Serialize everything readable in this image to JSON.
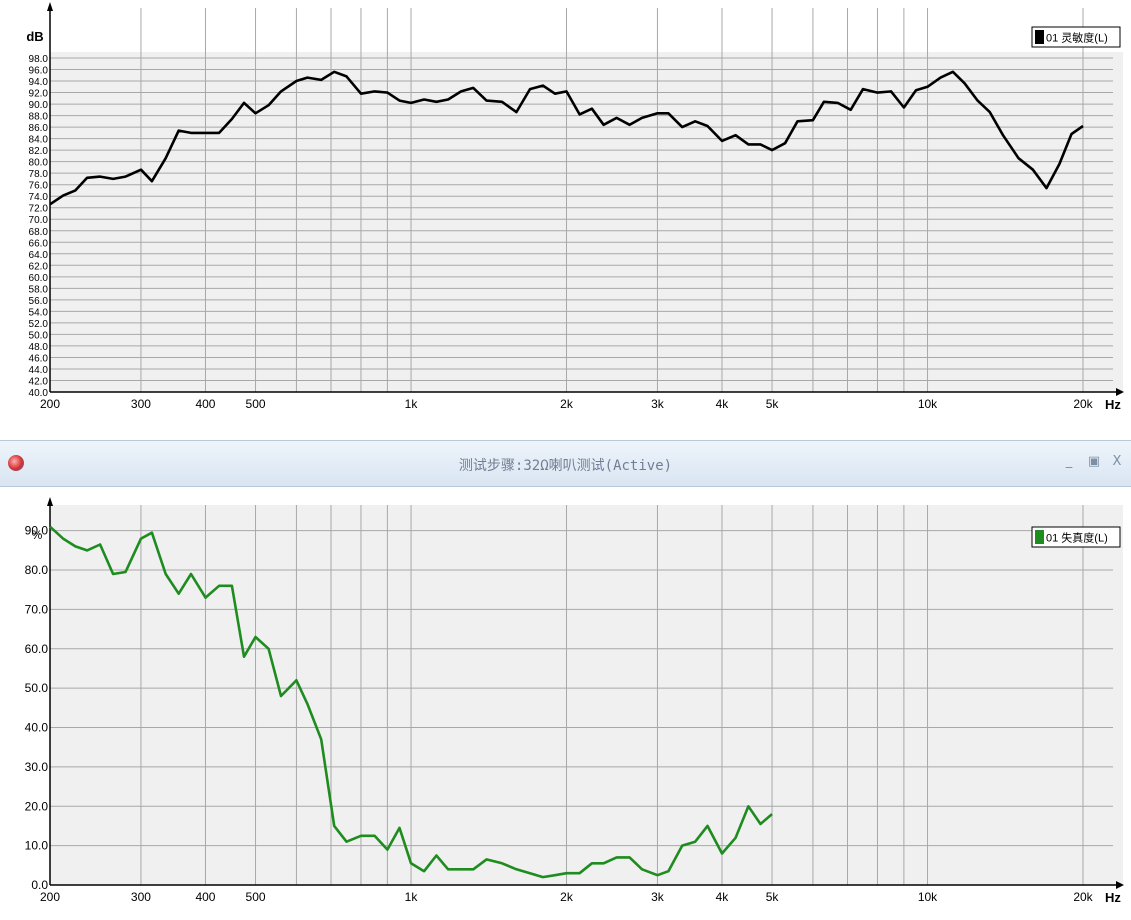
{
  "window": {
    "title": "测试步骤:32Ω喇叭测试(Active)",
    "minimize_label": "_",
    "maximize_label": "▣",
    "close_label": "X"
  },
  "chart_data": [
    {
      "type": "line",
      "ylabel": "dB",
      "xunit_label": "Hz",
      "xscale": "log",
      "xlim": [
        200,
        20000
      ],
      "ylim": [
        40,
        98
      ],
      "ytick_step": 2,
      "x_tick_labels": [
        "200",
        "300",
        "400",
        "500",
        "1k",
        "2k",
        "3k",
        "4k",
        "5k",
        "10k",
        "20k"
      ],
      "x_tick_values": [
        200,
        300,
        400,
        500,
        1000,
        2000,
        3000,
        4000,
        5000,
        10000,
        20000
      ],
      "grid": true,
      "legend": "top-right",
      "series": [
        {
          "name": "01 灵敏度(L)",
          "color": "#000000",
          "x": [
            200,
            212,
            224,
            236,
            250,
            265,
            280,
            300,
            315,
            335,
            355,
            375,
            400,
            425,
            450,
            475,
            500,
            530,
            560,
            600,
            630,
            670,
            710,
            750,
            800,
            850,
            900,
            950,
            1000,
            1060,
            1120,
            1180,
            1250,
            1320,
            1400,
            1500,
            1600,
            1700,
            1800,
            1900,
            2000,
            2120,
            2240,
            2360,
            2500,
            2650,
            2800,
            3000,
            3150,
            3350,
            3550,
            3750,
            4000,
            4250,
            4500,
            4750,
            5000,
            5300,
            5600,
            6000,
            6300,
            6700,
            7100,
            7500,
            8000,
            8500,
            9000,
            9500,
            10000,
            10600,
            11200,
            11800,
            12500,
            13200,
            14000,
            15000,
            16000,
            17000,
            18000,
            19000,
            20000
          ],
          "y": [
            72.6,
            74.1,
            75.0,
            77.2,
            77.4,
            77.0,
            77.4,
            78.6,
            76.6,
            80.6,
            85.4,
            85.0,
            85.0,
            85.0,
            87.4,
            90.2,
            88.4,
            89.8,
            92.2,
            94.0,
            94.6,
            94.2,
            95.6,
            94.8,
            91.8,
            92.2,
            92.0,
            90.6,
            90.2,
            90.8,
            90.4,
            90.8,
            92.2,
            92.8,
            90.6,
            90.4,
            88.6,
            92.6,
            93.2,
            91.8,
            92.2,
            88.2,
            89.2,
            86.4,
            87.6,
            86.4,
            87.6,
            88.4,
            88.4,
            86.0,
            87.0,
            86.2,
            83.6,
            84.6,
            83.0,
            83.0,
            82.0,
            83.2,
            87.0,
            87.2,
            90.4,
            90.2,
            89.0,
            92.6,
            92.0,
            92.2,
            89.4,
            92.4,
            93.0,
            94.6,
            95.6,
            93.6,
            90.6,
            88.6,
            84.6,
            80.6,
            78.6,
            75.4,
            79.6,
            84.8,
            86.2
          ]
        }
      ]
    },
    {
      "type": "line",
      "ylabel": "%",
      "xunit_label": "Hz",
      "xscale": "log",
      "xlim": [
        200,
        20000
      ],
      "ylim": [
        0,
        95
      ],
      "y_tick_labels": [
        "0.0",
        "10.0",
        "20.0",
        "30.0",
        "40.0",
        "50.0",
        "60.0",
        "70.0",
        "80.0",
        "90.0"
      ],
      "y_tick_values": [
        0,
        10,
        20,
        30,
        40,
        50,
        60,
        70,
        80,
        90
      ],
      "x_tick_labels": [
        "200",
        "300",
        "400",
        "500",
        "1k",
        "2k",
        "3k",
        "4k",
        "5k",
        "10k",
        "20k"
      ],
      "x_tick_values": [
        200,
        300,
        400,
        500,
        1000,
        2000,
        3000,
        4000,
        5000,
        10000,
        20000
      ],
      "grid": true,
      "legend": "top-right",
      "series": [
        {
          "name": "01 失真度(L)",
          "color": "#1e8c1e",
          "x": [
            200,
            212,
            224,
            236,
            250,
            265,
            280,
            300,
            315,
            335,
            355,
            375,
            400,
            425,
            450,
            475,
            500,
            530,
            560,
            600,
            630,
            670,
            710,
            750,
            800,
            850,
            900,
            950,
            1000,
            1060,
            1120,
            1180,
            1250,
            1320,
            1400,
            1500,
            1600,
            1700,
            1800,
            1900,
            2000,
            2120,
            2240,
            2360,
            2500,
            2650,
            2800,
            3000,
            3150,
            3350,
            3550,
            3750,
            4000,
            4250,
            4500,
            4750,
            5000
          ],
          "y": [
            91.0,
            88.0,
            86.0,
            85.0,
            86.5,
            79.0,
            79.5,
            88.0,
            89.5,
            79.0,
            74.0,
            79.0,
            73.0,
            76.0,
            76.0,
            58.0,
            63.0,
            60.0,
            48.0,
            52.0,
            46.0,
            37.0,
            15.0,
            11.0,
            12.5,
            12.5,
            9.0,
            14.5,
            5.5,
            3.5,
            7.5,
            4.0,
            4.0,
            4.0,
            6.5,
            5.5,
            4.0,
            3.0,
            2.0,
            2.5,
            3.0,
            3.0,
            5.5,
            5.5,
            7.0,
            7.0,
            4.0,
            2.5,
            3.5,
            10.0,
            11.0,
            15.0,
            8.0,
            12.0,
            20.0,
            15.5,
            18.0
          ]
        }
      ]
    }
  ]
}
